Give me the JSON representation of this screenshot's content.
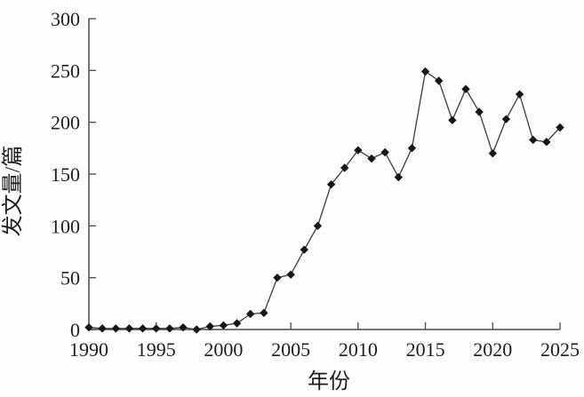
{
  "figure": {
    "background": "#fdfdfd",
    "axis_color": "#4a4a4a",
    "line_color": "#3c3c3c",
    "marker_color": "#161616",
    "text_color": "#1e1e1e"
  },
  "chart_data": {
    "type": "line",
    "title": "",
    "xlabel": "年份",
    "ylabel": "发文量/篇",
    "xlim": [
      1990,
      2025
    ],
    "ylim": [
      0,
      300
    ],
    "x_ticks": [
      1990,
      1995,
      2000,
      2005,
      2010,
      2015,
      2020,
      2025
    ],
    "y_ticks": [
      0,
      50,
      100,
      150,
      200,
      250,
      300
    ],
    "grid": false,
    "legend": "none",
    "marker": "filled-diamond",
    "x": [
      1990,
      1991,
      1992,
      1993,
      1994,
      1995,
      1996,
      1997,
      1998,
      1999,
      2000,
      2001,
      2002,
      2003,
      2004,
      2005,
      2006,
      2007,
      2008,
      2009,
      2010,
      2011,
      2012,
      2013,
      2014,
      2015,
      2016,
      2017,
      2018,
      2019,
      2020,
      2021,
      2022,
      2023,
      2024,
      2025
    ],
    "values": [
      2,
      1,
      1,
      1,
      1,
      1,
      1,
      2,
      0,
      3,
      4,
      6,
      15,
      16,
      50,
      53,
      77,
      100,
      140,
      156,
      173,
      165,
      171,
      147,
      175,
      249,
      240,
      202,
      232,
      210,
      170,
      203,
      227,
      183,
      181,
      195
    ]
  }
}
